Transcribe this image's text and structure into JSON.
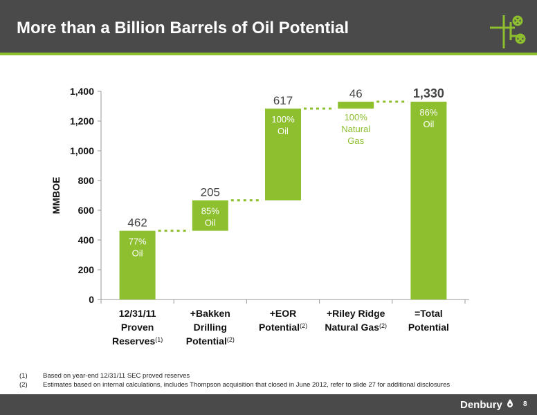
{
  "header": {
    "title": "More than a Billion Barrels of Oil Potential"
  },
  "colors": {
    "bar": "#8dbf2e",
    "header": "#4a4a4a",
    "connector": "#8dbf2e"
  },
  "chart_data": {
    "type": "bar",
    "subtype": "waterfall",
    "ylabel": "MMBOE",
    "ylim": [
      0,
      1400
    ],
    "yticks": [
      0,
      200,
      400,
      600,
      800,
      1000,
      1200,
      1400
    ],
    "grid": false,
    "categories": [
      {
        "lines": [
          "12/31/11",
          "Proven",
          "Reserves"
        ],
        "sup": "(1)"
      },
      {
        "lines": [
          "+Bakken",
          "Drilling",
          "Potential"
        ],
        "sup": "(2)"
      },
      {
        "lines": [
          "+EOR",
          "Potential"
        ],
        "sup": "(2)"
      },
      {
        "lines": [
          "+Riley Ridge",
          "Natural Gas"
        ],
        "sup": "(2)"
      },
      {
        "lines": [
          "=Total",
          "Potential"
        ],
        "sup": ""
      }
    ],
    "bars": [
      {
        "start": 0,
        "end": 462,
        "value_label": "462",
        "inner": [
          "77%",
          "Oil"
        ],
        "inner_color": "#ffffff"
      },
      {
        "start": 462,
        "end": 667,
        "value_label": "205",
        "inner": [
          "85%",
          "Oil"
        ],
        "inner_color": "#ffffff"
      },
      {
        "start": 667,
        "end": 1284,
        "value_label": "617",
        "inner": [
          "100%",
          "Oil"
        ],
        "inner_color": "#ffffff"
      },
      {
        "start": 1284,
        "end": 1330,
        "value_label": "46",
        "inner": [
          "100%",
          "Natural",
          "Gas"
        ],
        "inner_color": "#8dbf2e"
      },
      {
        "start": 0,
        "end": 1330,
        "value_label": "1,330",
        "inner": [
          "86%",
          "Oil"
        ],
        "inner_color": "#ffffff",
        "bold": true
      }
    ]
  },
  "footnotes": [
    {
      "num": "(1)",
      "text": "Based on year-end 12/31/11 SEC proved reserves"
    },
    {
      "num": "(2)",
      "text": "Estimates based on internal calculations, includes Thompson acquisition that closed in June 2012, refer to slide 27 for additional disclosures"
    }
  ],
  "footer": {
    "brand": "Denbury",
    "page": "8"
  }
}
